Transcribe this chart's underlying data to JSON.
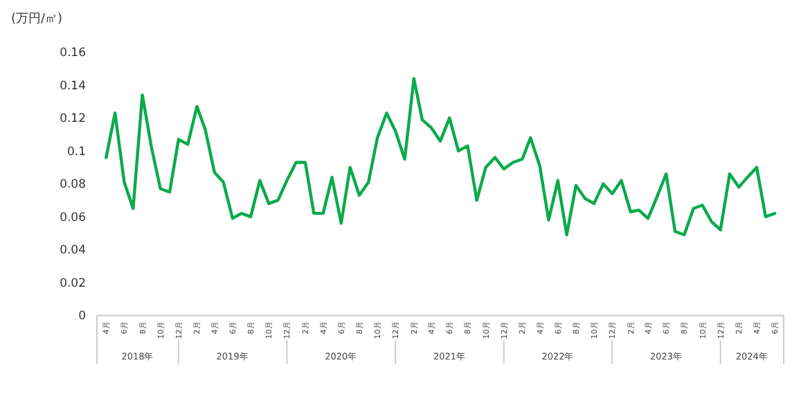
{
  "chart_data": {
    "type": "line",
    "ylabel": "(万円/㎡)",
    "color": "#0aaa4b",
    "line_style": "solid",
    "marker": "none",
    "grid": false,
    "x": [
      "2018-04",
      "2018-05",
      "2018-06",
      "2018-07",
      "2018-08",
      "2018-09",
      "2018-10",
      "2018-11",
      "2018-12",
      "2019-01",
      "2019-02",
      "2019-03",
      "2019-04",
      "2019-05",
      "2019-06",
      "2019-07",
      "2019-08",
      "2019-09",
      "2019-10",
      "2019-11",
      "2019-12",
      "2020-01",
      "2020-02",
      "2020-03",
      "2020-04",
      "2020-05",
      "2020-06",
      "2020-07",
      "2020-08",
      "2020-09",
      "2020-10",
      "2020-11",
      "2020-12",
      "2021-01",
      "2021-02",
      "2021-03",
      "2021-04",
      "2021-05",
      "2021-06",
      "2021-07",
      "2021-08",
      "2021-09",
      "2021-10",
      "2021-11",
      "2021-12",
      "2022-01",
      "2022-02",
      "2022-03",
      "2022-04",
      "2022-05",
      "2022-06",
      "2022-07",
      "2022-08",
      "2022-09",
      "2022-10",
      "2022-11",
      "2022-12",
      "2023-01",
      "2023-02",
      "2023-03",
      "2023-04",
      "2023-05",
      "2023-06",
      "2023-07",
      "2023-08",
      "2023-09",
      "2023-10",
      "2023-11",
      "2023-12",
      "2024-01",
      "2024-02",
      "2024-03",
      "2024-04",
      "2024-05",
      "2024-06"
    ],
    "values": [
      0.096,
      0.123,
      0.081,
      0.065,
      0.134,
      0.102,
      0.077,
      0.075,
      0.107,
      0.104,
      0.127,
      0.113,
      0.087,
      0.081,
      0.059,
      0.062,
      0.06,
      0.082,
      0.068,
      0.07,
      0.082,
      0.093,
      0.093,
      0.062,
      0.062,
      0.084,
      0.056,
      0.09,
      0.073,
      0.081,
      0.108,
      0.123,
      0.112,
      0.095,
      0.144,
      0.119,
      0.114,
      0.106,
      0.12,
      0.1,
      0.103,
      0.07,
      0.09,
      0.096,
      0.089,
      0.093,
      0.095,
      0.108,
      0.091,
      0.058,
      0.082,
      0.049,
      0.079,
      0.071,
      0.068,
      0.08,
      0.074,
      0.082,
      0.063,
      0.064,
      0.059,
      0.072,
      0.086,
      0.051,
      0.049,
      0.065,
      0.067,
      0.057,
      0.052,
      0.086,
      0.078,
      0.084,
      0.09,
      0.06,
      0.062
    ],
    "xlim": [
      "2018-03",
      "2024-07"
    ],
    "xticks": [
      {
        "value": "2018-04",
        "label": "4月"
      },
      {
        "value": "2018-06",
        "label": "6月"
      },
      {
        "value": "2018-08",
        "label": "8月"
      },
      {
        "value": "2018-10",
        "label": "10月"
      },
      {
        "value": "2018-12",
        "label": "12月"
      },
      {
        "value": "2019-02",
        "label": "2月"
      },
      {
        "value": "2019-04",
        "label": "4月"
      },
      {
        "value": "2019-06",
        "label": "6月"
      },
      {
        "value": "2019-08",
        "label": "8月"
      },
      {
        "value": "2019-10",
        "label": "10月"
      },
      {
        "value": "2019-12",
        "label": "12月"
      },
      {
        "value": "2020-02",
        "label": "2月"
      },
      {
        "value": "2020-04",
        "label": "4月"
      },
      {
        "value": "2020-06",
        "label": "6月"
      },
      {
        "value": "2020-08",
        "label": "8月"
      },
      {
        "value": "2020-10",
        "label": "10月"
      },
      {
        "value": "2020-12",
        "label": "12月"
      },
      {
        "value": "2021-02",
        "label": "2月"
      },
      {
        "value": "2021-04",
        "label": "4月"
      },
      {
        "value": "2021-06",
        "label": "6月"
      },
      {
        "value": "2021-08",
        "label": "8月"
      },
      {
        "value": "2021-10",
        "label": "10月"
      },
      {
        "value": "2021-12",
        "label": "12月"
      },
      {
        "value": "2022-02",
        "label": "2月"
      },
      {
        "value": "2022-04",
        "label": "4月"
      },
      {
        "value": "2022-06",
        "label": "6月"
      },
      {
        "value": "2022-08",
        "label": "8月"
      },
      {
        "value": "2022-10",
        "label": "10月"
      },
      {
        "value": "2022-12",
        "label": "12月"
      },
      {
        "value": "2023-02",
        "label": "2月"
      },
      {
        "value": "2023-04",
        "label": "4月"
      },
      {
        "value": "2023-06",
        "label": "6月"
      },
      {
        "value": "2023-08",
        "label": "8月"
      },
      {
        "value": "2023-10",
        "label": "10月"
      },
      {
        "value": "2023-12",
        "label": "12月"
      },
      {
        "value": "2024-02",
        "label": "2月"
      },
      {
        "value": "2024-04",
        "label": "4月"
      },
      {
        "value": "2024-06",
        "label": "6月"
      }
    ],
    "ylim": [
      0,
      0.16
    ],
    "yticks": [
      0,
      0.02,
      0.04,
      0.06,
      0.08,
      0.1,
      0.12,
      0.14,
      0.16
    ],
    "annotations": [
      "2018年",
      "2019年",
      "2020年",
      "2021年",
      "2022年",
      "2023年",
      "2024年"
    ]
  }
}
